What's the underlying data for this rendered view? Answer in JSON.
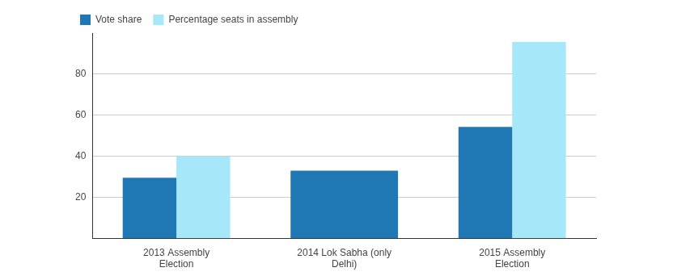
{
  "chart_data": {
    "type": "bar",
    "categories": [
      "2013 Assembly Election",
      "2014 Lok Sabha (only Delhi)",
      "2015 Assembly Election"
    ],
    "series": [
      {
        "name": "Vote share",
        "color": "#1f77b4",
        "values": [
          29.5,
          32.9,
          54.3
        ]
      },
      {
        "name": "Percentage seats in assembly",
        "color": "#a6e7fa",
        "values": [
          40,
          null,
          95.7
        ]
      }
    ],
    "ylim": [
      0,
      100
    ],
    "yticks": [
      20,
      40,
      60,
      80
    ],
    "grid": true,
    "legend": "top-left"
  }
}
